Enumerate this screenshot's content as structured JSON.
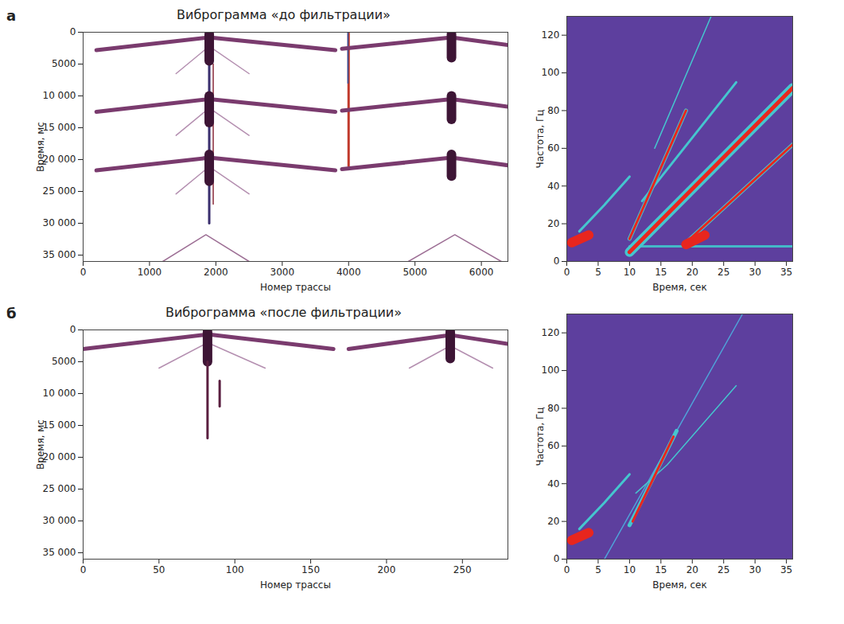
{
  "chart_data": [
    {
      "panel_label": "а",
      "type": "line",
      "title": "Виброграмма «до фильтрации»",
      "x_label": "Номер трассы",
      "y_label": "Время, мс",
      "xlim": [
        0,
        6400
      ],
      "xticks": [
        0,
        1000,
        2000,
        3000,
        4000,
        5000,
        6000
      ],
      "ylim": [
        36000,
        0
      ],
      "yticks": [
        0,
        5000,
        {
          "value": 10000,
          "label": "10 000"
        },
        {
          "value": 15000,
          "label": "15 000"
        },
        {
          "value": 20000,
          "label": "20 000"
        },
        {
          "value": 25000,
          "label": "25 000"
        },
        {
          "value": 30000,
          "label": "30 000"
        },
        {
          "value": 35000,
          "label": "35 000"
        }
      ],
      "series": [
        {
          "color": "#3a2f6e",
          "line_style": "medium",
          "x": [
            1900,
            1900
          ],
          "y": [
            4500,
            30000
          ]
        },
        {
          "color": "#8a2a3a",
          "line_style": "thin",
          "x": [
            1960,
            1960
          ],
          "y": [
            5000,
            27000
          ]
        },
        {
          "color": "#c0392b",
          "line_style": "medium",
          "x": [
            4000,
            4000
          ],
          "y": [
            0,
            21000
          ]
        },
        {
          "color": "#2c4f9e",
          "line_style": "thin",
          "x": [
            3990,
            3990
          ],
          "y": [
            0,
            8000
          ]
        },
        {
          "color": "#7a3b6e",
          "line_style": "thick",
          "x": [
            200,
            1900,
            3800
          ],
          "y": [
            2800,
            800,
            2800
          ]
        },
        {
          "color": "#b48fb0",
          "line_style": "thin",
          "x": [
            1400,
            1900,
            2500
          ],
          "y": [
            6500,
            2200,
            6500
          ]
        },
        {
          "color": "#3d1535",
          "line_style": "heavy",
          "x": [
            1900,
            1900
          ],
          "y": [
            300,
            4500
          ]
        },
        {
          "color": "#7a3b6e",
          "line_style": "thick",
          "x": [
            3900,
            5550,
            6400
          ],
          "y": [
            2600,
            800,
            2000
          ]
        },
        {
          "color": "#3d1535",
          "line_style": "heavy",
          "x": [
            5550,
            5550
          ],
          "y": [
            300,
            4000
          ]
        },
        {
          "color": "#7a3b6e",
          "line_style": "thick",
          "x": [
            200,
            1900,
            3800
          ],
          "y": [
            12500,
            10500,
            12500
          ]
        },
        {
          "color": "#b48fb0",
          "line_style": "thin",
          "x": [
            1400,
            1900,
            2500
          ],
          "y": [
            16200,
            11900,
            16200
          ]
        },
        {
          "color": "#3d1535",
          "line_style": "heavy",
          "x": [
            1900,
            1900
          ],
          "y": [
            10000,
            14200
          ]
        },
        {
          "color": "#7a3b6e",
          "line_style": "thick",
          "x": [
            3900,
            5550,
            6400
          ],
          "y": [
            12300,
            10500,
            11700
          ]
        },
        {
          "color": "#3d1535",
          "line_style": "heavy",
          "x": [
            5550,
            5550
          ],
          "y": [
            10000,
            13700
          ]
        },
        {
          "color": "#7a3b6e",
          "line_style": "thick",
          "x": [
            200,
            1900,
            3800
          ],
          "y": [
            21700,
            19700,
            21700
          ]
        },
        {
          "color": "#b48fb0",
          "line_style": "thin",
          "x": [
            1400,
            1900,
            2500
          ],
          "y": [
            25400,
            21100,
            25400
          ]
        },
        {
          "color": "#3d1535",
          "line_style": "heavy",
          "x": [
            1900,
            1900
          ],
          "y": [
            19200,
            23400
          ]
        },
        {
          "color": "#7a3b6e",
          "line_style": "thick",
          "x": [
            3900,
            5550,
            6400
          ],
          "y": [
            21500,
            19700,
            20900
          ]
        },
        {
          "color": "#3d1535",
          "line_style": "heavy",
          "x": [
            5550,
            5550
          ],
          "y": [
            19200,
            22600
          ]
        },
        {
          "color": "#9d6f95",
          "line_style": "thin",
          "x": [
            1200,
            1850,
            2500
          ],
          "y": [
            36000,
            31800,
            36000
          ]
        },
        {
          "color": "#9d6f95",
          "line_style": "thin",
          "x": [
            4900,
            5600,
            6300
          ],
          "y": [
            36000,
            31800,
            36000
          ]
        }
      ]
    },
    {
      "type": "line",
      "color": "#5d3f9e",
      "x_label": "Время, сек",
      "y_label": "Частота, Гц",
      "xlim": [
        0,
        36
      ],
      "xticks": [
        0,
        5,
        10,
        15,
        20,
        25,
        30,
        35
      ],
      "ylim": [
        0,
        130
      ],
      "yticks": [
        0,
        20,
        40,
        60,
        80,
        100,
        120
      ],
      "series": [
        {
          "color": "#43b8c8",
          "line_style": "medium",
          "x": [
            10,
            36
          ],
          "y": [
            8,
            8
          ]
        },
        {
          "color": "#45c6cf",
          "line_style": "medium",
          "x": [
            2,
            6,
            10
          ],
          "y": [
            16,
            30,
            45
          ]
        },
        {
          "color": "#e8261e",
          "line_style": "heavy",
          "x": [
            0.8,
            3.5
          ],
          "y": [
            10,
            14
          ]
        },
        {
          "color": "#45c6cf",
          "line_style": "thin",
          "x": [
            14,
            23
          ],
          "y": [
            60,
            130
          ]
        },
        {
          "color": "#45c6cf",
          "line_style": "medium",
          "x": [
            12,
            27
          ],
          "y": [
            32,
            95
          ]
        },
        {
          "color": "#45c6cf",
          "line_style": "thick",
          "x": [
            10,
            19
          ],
          "y": [
            12,
            80
          ]
        },
        {
          "color": "#e8261e",
          "line_style": "medium",
          "x": [
            10,
            19
          ],
          "y": [
            12,
            80
          ]
        },
        {
          "color": "#45c6cf",
          "line_style": "heavy",
          "x": [
            10,
            36
          ],
          "y": [
            5,
            92
          ]
        },
        {
          "color": "#e8261e",
          "line_style": "thick",
          "x": [
            10,
            36
          ],
          "y": [
            5,
            92
          ]
        },
        {
          "color": "#45c6cf",
          "line_style": "thick",
          "x": [
            19,
            36
          ],
          "y": [
            10,
            62
          ]
        },
        {
          "color": "#e8261e",
          "line_style": "medium",
          "x": [
            19,
            36
          ],
          "y": [
            10,
            62
          ]
        },
        {
          "color": "#e8261e",
          "line_style": "heavy",
          "x": [
            19,
            22
          ],
          "y": [
            9,
            14
          ]
        }
      ]
    },
    {
      "panel_label": "б",
      "type": "line",
      "title": "Виброграмма «после фильтрации»",
      "x_label": "Номер трассы",
      "y_label": "Время, мс",
      "xlim": [
        0,
        280
      ],
      "xticks": [
        0,
        50,
        100,
        150,
        200,
        250
      ],
      "ylim": [
        36000,
        0
      ],
      "yticks": [
        0,
        5000,
        {
          "value": 10000,
          "label": "10 000"
        },
        {
          "value": 15000,
          "label": "15 000"
        },
        {
          "value": 20000,
          "label": "20 000"
        },
        {
          "value": 25000,
          "label": "25 000"
        },
        {
          "value": 30000,
          "label": "30 000"
        },
        {
          "value": 35000,
          "label": "35 000"
        }
      ],
      "series": [
        {
          "color": "#7a3b6e",
          "line_style": "thick",
          "x": [
            0,
            82,
            165
          ],
          "y": [
            3000,
            700,
            3000
          ]
        },
        {
          "color": "#b48fb0",
          "line_style": "thin",
          "x": [
            50,
            82,
            120
          ],
          "y": [
            6000,
            2000,
            6000
          ]
        },
        {
          "color": "#3d1535",
          "line_style": "heavy",
          "x": [
            82,
            82
          ],
          "y": [
            300,
            5000
          ]
        },
        {
          "color": "#5a1f40",
          "line_style": "medium",
          "x": [
            82,
            82
          ],
          "y": [
            5000,
            17000
          ]
        },
        {
          "color": "#5a1f40",
          "line_style": "medium",
          "x": [
            90,
            90
          ],
          "y": [
            8000,
            12000
          ]
        },
        {
          "color": "#7a3b6e",
          "line_style": "thick",
          "x": [
            175,
            242,
            280
          ],
          "y": [
            3000,
            800,
            2200
          ]
        },
        {
          "color": "#b48fb0",
          "line_style": "thin",
          "x": [
            215,
            242,
            270
          ],
          "y": [
            6000,
            2500,
            6000
          ]
        },
        {
          "color": "#3d1535",
          "line_style": "heavy",
          "x": [
            242,
            242
          ],
          "y": [
            300,
            4500
          ]
        }
      ]
    },
    {
      "type": "line",
      "color": "#5d3f9e",
      "x_label": "Время, сек",
      "y_label": "Частота, Гц",
      "xlim": [
        0,
        36
      ],
      "xticks": [
        0,
        5,
        10,
        15,
        20,
        25,
        30,
        35
      ],
      "ylim": [
        0,
        130
      ],
      "yticks": [
        0,
        20,
        40,
        60,
        80,
        100,
        120
      ],
      "series": [
        {
          "color": "#4fa3d9",
          "line_style": "thin",
          "x": [
            6,
            28
          ],
          "y": [
            0,
            130
          ]
        },
        {
          "color": "#45c6cf",
          "line_style": "thin",
          "x": [
            11,
            16,
            27
          ],
          "y": [
            35,
            50,
            92
          ]
        },
        {
          "color": "#45c6cf",
          "line_style": "medium",
          "x": [
            2,
            6,
            10
          ],
          "y": [
            16,
            30,
            45
          ]
        },
        {
          "color": "#e8261e",
          "line_style": "heavy",
          "x": [
            0.8,
            3.5
          ],
          "y": [
            10,
            14
          ]
        },
        {
          "color": "#45c6cf",
          "line_style": "thick",
          "x": [
            10,
            17.5
          ],
          "y": [
            18,
            68
          ]
        },
        {
          "color": "#e8261e",
          "line_style": "medium",
          "x": [
            10.5,
            17
          ],
          "y": [
            20,
            65
          ]
        }
      ]
    }
  ]
}
